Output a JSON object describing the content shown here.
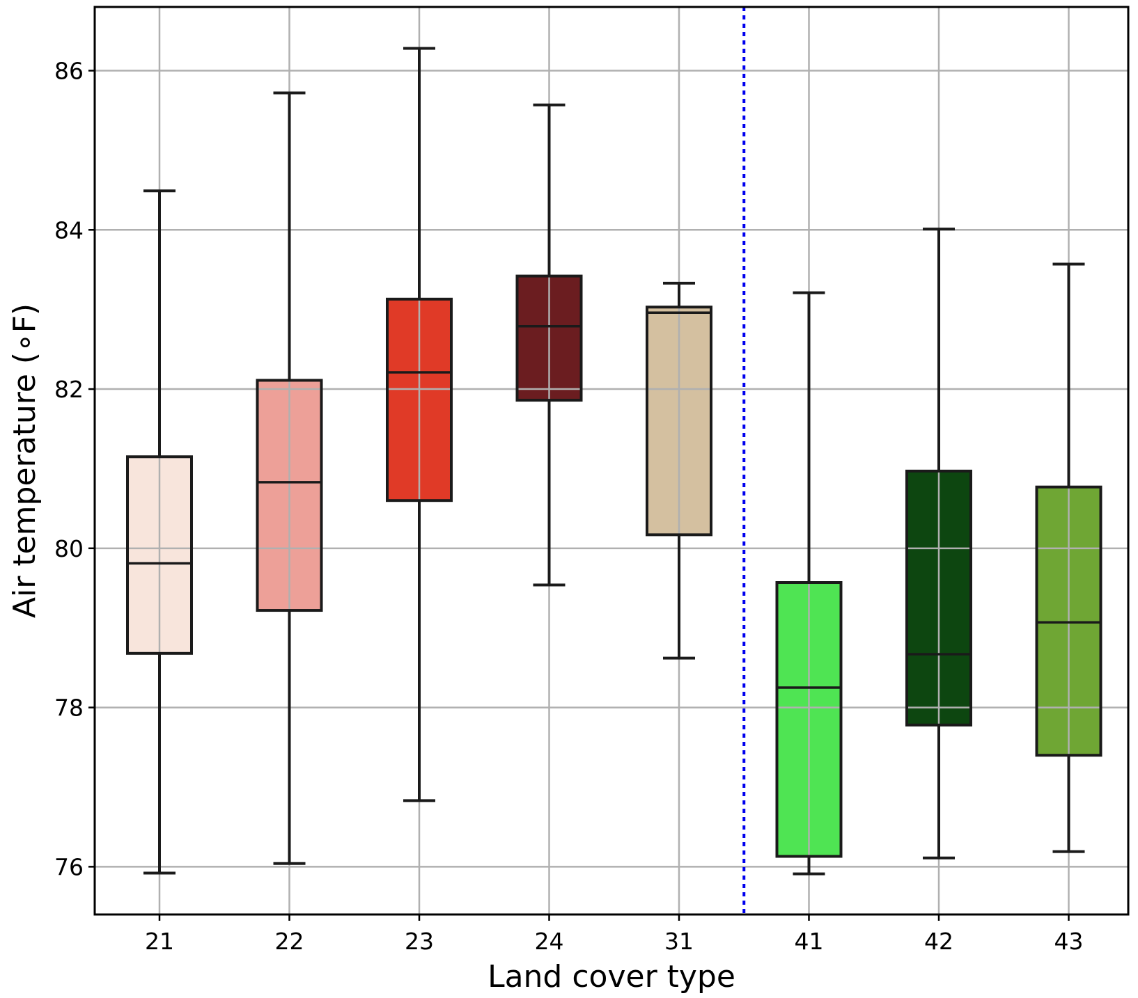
{
  "chart_data": {
    "type": "box",
    "xlabel": "Land cover type",
    "ylabel": "Air temperature (∘F)",
    "ylim": [
      75.4,
      86.8
    ],
    "yticks": [
      "76",
      "78",
      "80",
      "82",
      "84",
      "86"
    ],
    "grid": true,
    "categories": [
      "21",
      "22",
      "23",
      "24",
      "31",
      "41",
      "42",
      "43"
    ],
    "boxes": [
      {
        "category": "21",
        "whisker_low": 75.92,
        "q1": 78.68,
        "median": 79.81,
        "q3": 81.15,
        "whisker_high": 84.49,
        "color": "#f8e5dc"
      },
      {
        "category": "22",
        "whisker_low": 76.04,
        "q1": 79.22,
        "median": 80.83,
        "q3": 82.11,
        "whisker_high": 85.72,
        "color": "#eda098"
      },
      {
        "category": "23",
        "whisker_low": 76.83,
        "q1": 80.6,
        "median": 82.21,
        "q3": 83.13,
        "whisker_high": 86.28,
        "color": "#e03a27"
      },
      {
        "category": "24",
        "whisker_low": 79.54,
        "q1": 81.86,
        "median": 82.79,
        "q3": 83.42,
        "whisker_high": 85.57,
        "color": "#6b1d20"
      },
      {
        "category": "31",
        "whisker_low": 78.62,
        "q1": 80.17,
        "median": 82.96,
        "q3": 83.03,
        "whisker_high": 83.33,
        "color": "#d4c0a0"
      },
      {
        "category": "41",
        "whisker_low": 75.91,
        "q1": 76.13,
        "median": 78.25,
        "q3": 79.57,
        "whisker_high": 83.21,
        "color": "#4fe453"
      },
      {
        "category": "42",
        "whisker_low": 76.11,
        "q1": 77.78,
        "median": 78.67,
        "q3": 80.97,
        "whisker_high": 84.01,
        "color": "#0d4610"
      },
      {
        "category": "43",
        "whisker_low": 76.19,
        "q1": 77.4,
        "median": 79.07,
        "q3": 80.77,
        "whisker_high": 83.57,
        "color": "#6fa634"
      }
    ],
    "divider": {
      "between": [
        "31",
        "41"
      ],
      "style": "dotted",
      "color": "#0000ee"
    },
    "colors": {
      "grid": "#b0b0b0",
      "outline": "#1a1a1a",
      "frame": "#000000"
    }
  }
}
